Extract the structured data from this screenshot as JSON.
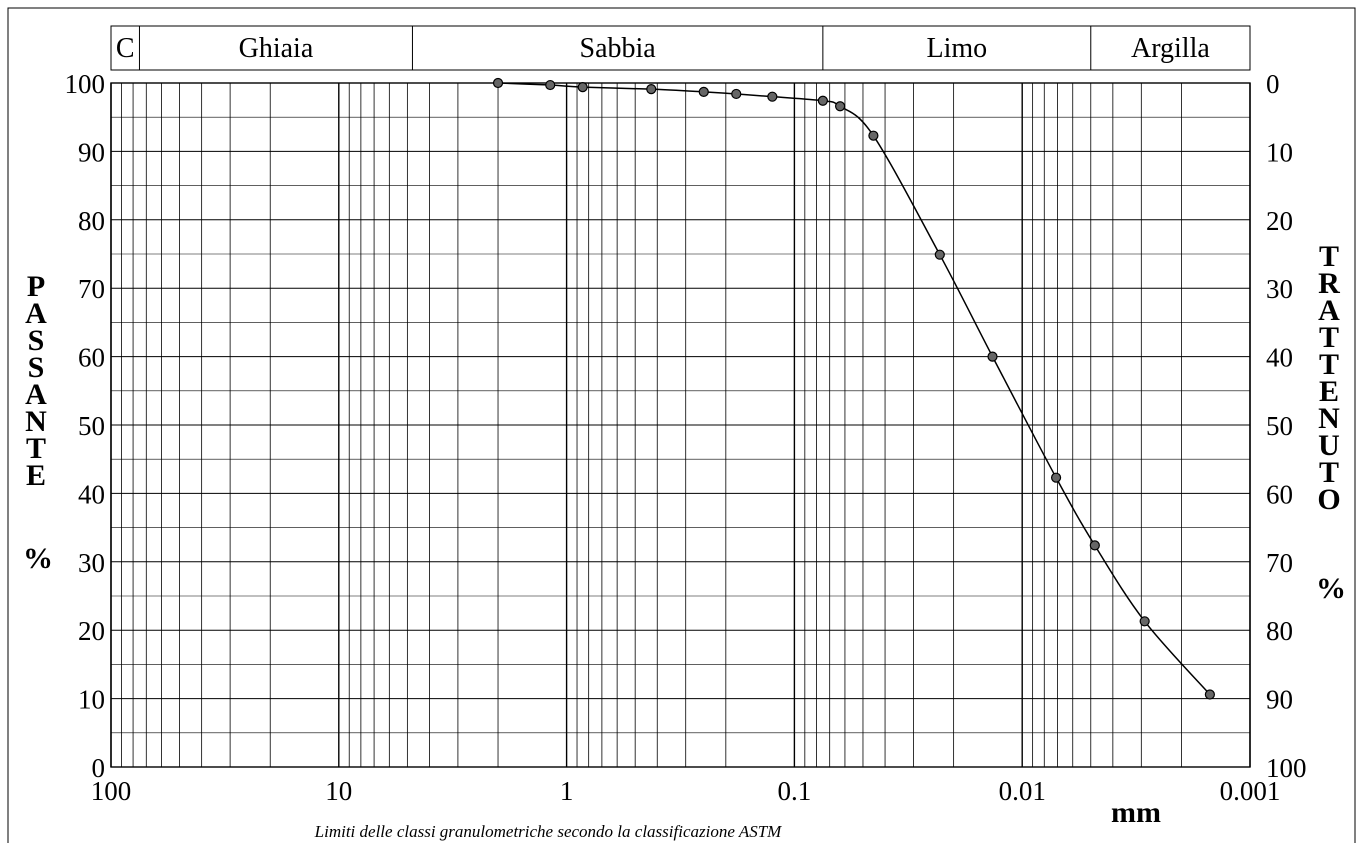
{
  "chart_data": {
    "type": "line",
    "x_scale": "log",
    "x_reversed": true,
    "xlim": [
      100,
      0.001
    ],
    "ylim": [
      0,
      100
    ],
    "x_ticks": [
      100,
      10,
      1,
      0.1,
      0.01,
      0.001
    ],
    "x_tick_labels": [
      "100",
      "10",
      "1",
      "0.1",
      "0.01",
      "0.001"
    ],
    "y_ticks": [
      0,
      10,
      20,
      30,
      40,
      50,
      60,
      70,
      80,
      90,
      100
    ],
    "y_tick_labels": [
      "0",
      "10",
      "20",
      "30",
      "40",
      "50",
      "60",
      "70",
      "80",
      "90",
      "100"
    ],
    "y2_tick_labels": [
      "100",
      "90",
      "80",
      "70",
      "60",
      "50",
      "40",
      "30",
      "20",
      "10",
      "0"
    ],
    "xlabel": "mm",
    "ylabel_left": "PASSANTE",
    "ylabel_left_unit": "%",
    "ylabel_right": "TRATTENUTO",
    "ylabel_right_unit": "%",
    "caption": "Limiti delle classi granulometriche secondo la classificazione ASTM",
    "grid": true,
    "classes": [
      {
        "label": "C",
        "from": 100,
        "to": 75
      },
      {
        "label": "Ghiaia",
        "from": 75,
        "to": 4.75
      },
      {
        "label": "Sabbia",
        "from": 4.75,
        "to": 0.075
      },
      {
        "label": "Limo",
        "from": 0.075,
        "to": 0.005
      },
      {
        "label": "Argilla",
        "from": 0.005,
        "to": 0.001
      }
    ],
    "series": [
      {
        "x": [
          2.0,
          1.18,
          0.85,
          0.425,
          0.25,
          0.18,
          0.125,
          0.075,
          0.063,
          0.045,
          0.023,
          0.0135,
          0.0071,
          0.0048,
          0.0029,
          0.0015
        ],
        "y": [
          100,
          99.7,
          99.4,
          99.1,
          98.7,
          98.4,
          98.0,
          97.4,
          96.6,
          92.3,
          74.9,
          60.0,
          42.3,
          32.4,
          21.3,
          10.6
        ]
      }
    ]
  }
}
